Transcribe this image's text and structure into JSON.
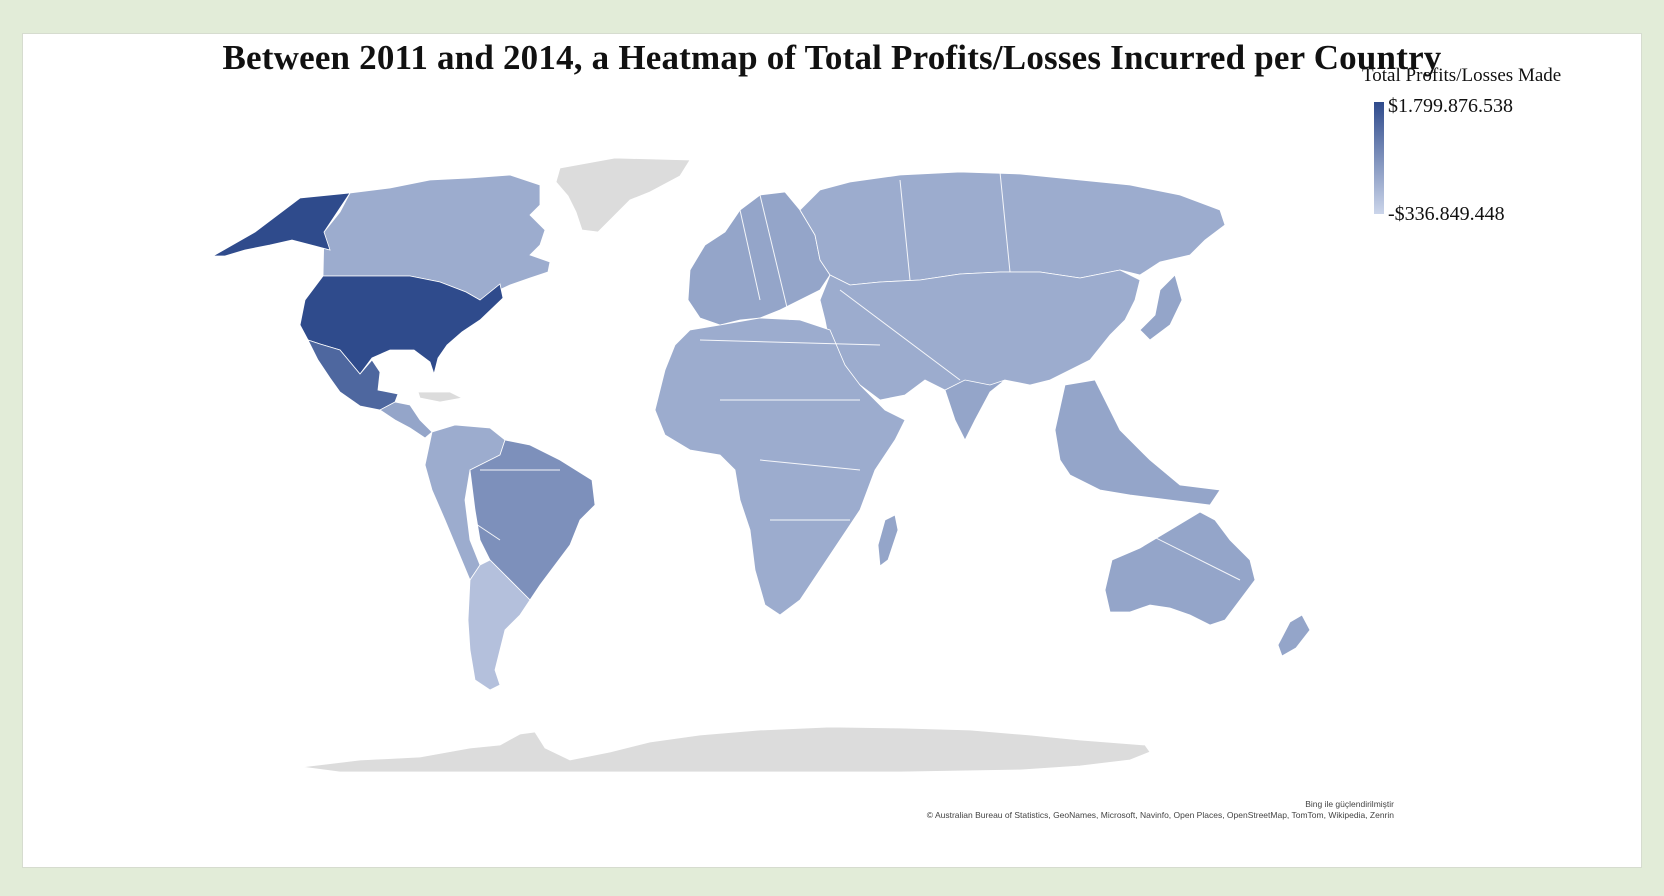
{
  "title": "Between 2011 and 2014, a Heatmap of Total Profits/Losses Incurred per Country",
  "legend": {
    "title": "Total Profits/Losses Made",
    "max_label": "$1.799.876.538",
    "min_label": "-$336.849.448",
    "color_high": "#2f4b8c",
    "color_low": "#cbd5ea"
  },
  "no_data_color": "#dcdcdc",
  "attribution": {
    "powered_by": "Bing ile güçlendirilmiştir",
    "sources": "© Australian Bureau of Statistics, GeoNames, Microsoft, Navinfo, Open Places, OpenStreetMap, TomTom, Wikipedia, Zenrin"
  },
  "chart_data": {
    "type": "heatmap",
    "value_range": [
      -336849448,
      1799876538
    ],
    "regions": [
      {
        "name": "United States",
        "level": 1.0
      },
      {
        "name": "Alaska",
        "level": 1.0
      },
      {
        "name": "Mexico",
        "level": 0.8
      },
      {
        "name": "Canada",
        "level": 0.3
      },
      {
        "name": "Brazil",
        "level": 0.5
      },
      {
        "name": "South America (other)",
        "level": 0.3
      },
      {
        "name": "Argentina",
        "level": 0.15
      },
      {
        "name": "Central America",
        "level": 0.35
      },
      {
        "name": "Europe",
        "level": 0.35
      },
      {
        "name": "Russia",
        "level": 0.3
      },
      {
        "name": "Asia",
        "level": 0.3
      },
      {
        "name": "Middle East",
        "level": 0.3
      },
      {
        "name": "Africa",
        "level": 0.3
      },
      {
        "name": "India",
        "level": 0.35
      },
      {
        "name": "Southeast Asia",
        "level": 0.35
      },
      {
        "name": "Japan",
        "level": 0.35
      },
      {
        "name": "Australia",
        "level": 0.35
      },
      {
        "name": "New Zealand",
        "level": 0.35
      },
      {
        "name": "Madagascar",
        "level": 0.35
      },
      {
        "name": "Greenland",
        "level": null
      },
      {
        "name": "Antarctica",
        "level": null
      }
    ]
  }
}
